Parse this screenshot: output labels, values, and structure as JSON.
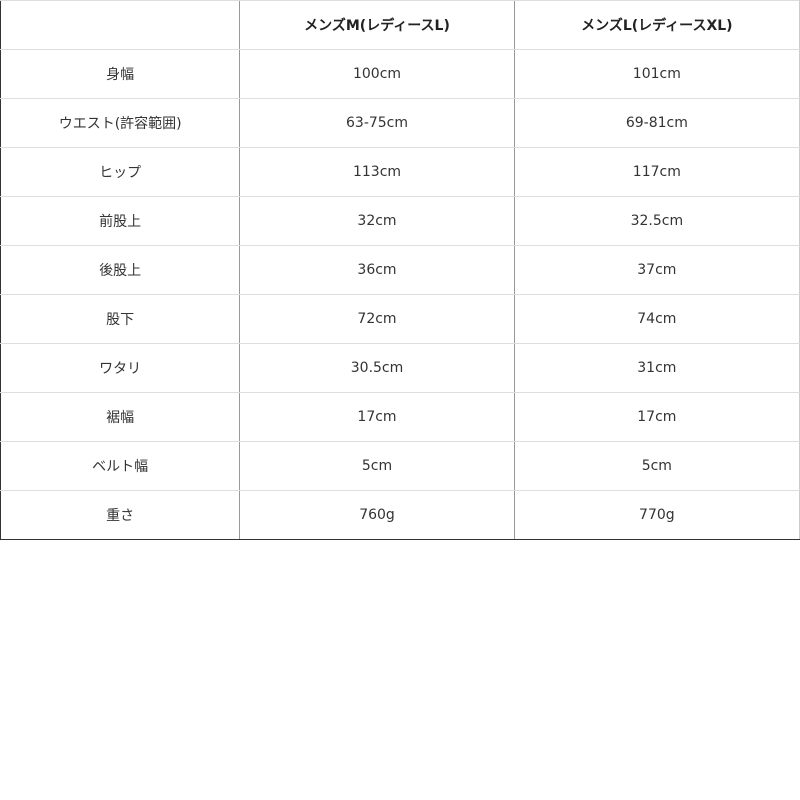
{
  "table": {
    "headers": [
      "",
      "メンズM(レディースL)",
      "メンズL(レディースXL)"
    ],
    "rows": [
      [
        "身幅",
        "100cm",
        "101cm"
      ],
      [
        "ウエスト(許容範囲)",
        "63-75cm",
        "69-81cm"
      ],
      [
        "ヒップ",
        "113cm",
        "117cm"
      ],
      [
        "前股上",
        "32cm",
        "32.5cm"
      ],
      [
        "後股上",
        "36cm",
        "37cm"
      ],
      [
        "股下",
        "72cm",
        "74cm"
      ],
      [
        "ワタリ",
        "30.5cm",
        "31cm"
      ],
      [
        "裾幅",
        "17cm",
        "17cm"
      ],
      [
        "ベルト幅",
        "5cm",
        "5cm"
      ],
      [
        "重さ",
        "760g",
        "770g"
      ]
    ]
  }
}
